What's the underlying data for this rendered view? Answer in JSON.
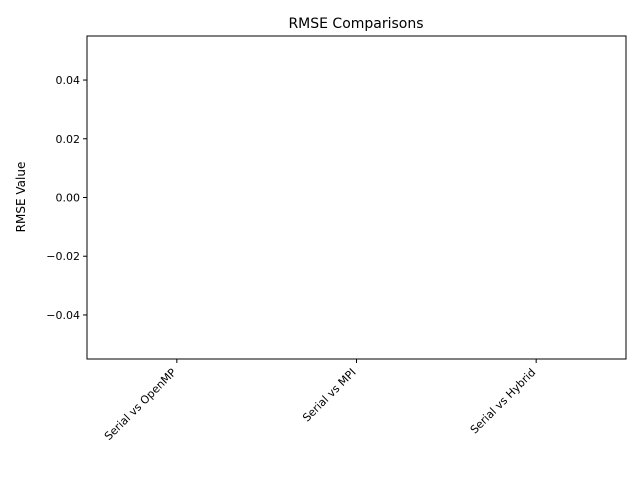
{
  "chart_data": {
    "type": "bar",
    "title": "RMSE Comparisons",
    "xlabel": "",
    "ylabel": "RMSE Value",
    "categories": [
      "Serial vs OpenMP",
      "Serial vs MPI",
      "Serial vs Hybrid"
    ],
    "values": [
      0,
      0,
      0
    ],
    "ylim": [
      -0.055,
      0.055
    ],
    "yticks": [
      -0.04,
      -0.02,
      0.0,
      0.02,
      0.04
    ],
    "ytick_labels": [
      "−0.04",
      "−0.02",
      "0.00",
      "0.02",
      "0.04"
    ],
    "grid": false,
    "bar_color": "#1f77b4"
  }
}
